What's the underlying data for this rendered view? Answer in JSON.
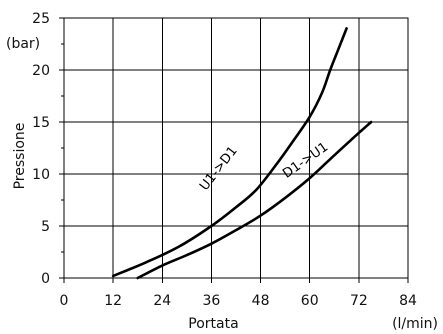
{
  "chart_data": {
    "type": "line",
    "xlabel": "Portata",
    "ylabel": "Pressione",
    "x_unit": "(l/min)",
    "y_unit": "(bar)",
    "xlim": [
      0,
      84
    ],
    "ylim": [
      0,
      25
    ],
    "x_ticks": [
      0,
      12,
      24,
      36,
      48,
      60,
      72,
      84
    ],
    "y_ticks": [
      0,
      5,
      10,
      15,
      20,
      25
    ],
    "grid": true,
    "series": [
      {
        "name": "U1->D1",
        "x": [
          12,
          20,
          28,
          36,
          42,
          47,
          52,
          56,
          60,
          63,
          65,
          67,
          69
        ],
        "y": [
          0.2,
          1.5,
          3.0,
          5.0,
          6.8,
          8.5,
          11.0,
          13.2,
          15.5,
          17.8,
          20.0,
          22.0,
          24.0
        ]
      },
      {
        "name": "D1->U1",
        "x": [
          18,
          24,
          30,
          36,
          42,
          48,
          54,
          60,
          66,
          71,
          75
        ],
        "y": [
          0.0,
          1.2,
          2.2,
          3.3,
          4.6,
          6.0,
          7.7,
          9.6,
          11.8,
          13.6,
          15.0
        ]
      }
    ]
  }
}
